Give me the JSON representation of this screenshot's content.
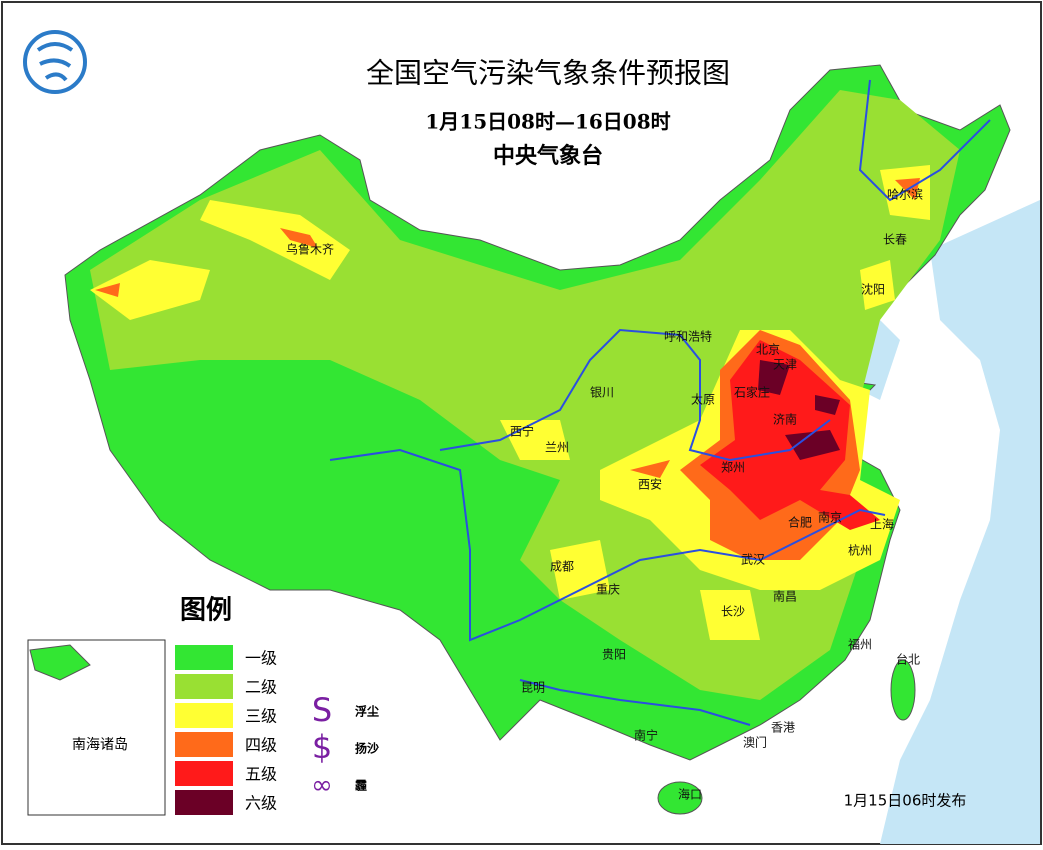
{
  "header": {
    "title": "全国空气污染气象条件预报图",
    "period": "1月15日08时—16日08时",
    "issuer": "中央气象台"
  },
  "legend": {
    "title": "图例",
    "levels": [
      {
        "label": "一级",
        "color": "#33e633"
      },
      {
        "label": "二级",
        "color": "#99e033"
      },
      {
        "label": "三级",
        "color": "#ffff33"
      },
      {
        "label": "四级",
        "color": "#ff6a1a"
      },
      {
        "label": "五级",
        "color": "#ff1a1a"
      },
      {
        "label": "六级",
        "color": "#6b0026"
      }
    ],
    "symbols": [
      {
        "glyph": "S",
        "label": "浮尘"
      },
      {
        "glyph": "$",
        "label": "扬沙"
      },
      {
        "glyph": "∞",
        "label": "霾"
      }
    ]
  },
  "cities": [
    "乌鲁木齐",
    "哈尔滨",
    "长春",
    "沈阳",
    "呼和浩特",
    "北京",
    "天津",
    "石家庄",
    "太原",
    "济南",
    "银川",
    "西宁",
    "兰州",
    "郑州",
    "西安",
    "合肥",
    "南京",
    "上海",
    "杭州",
    "武汉",
    "成都",
    "重庆",
    "长沙",
    "南昌",
    "福州",
    "台北",
    "贵阳",
    "昆明",
    "南宁",
    "澳门",
    "香港",
    "海口"
  ],
  "inset": {
    "label": "南海诸岛"
  },
  "footer": {
    "issued": "1月15日06时发布"
  }
}
